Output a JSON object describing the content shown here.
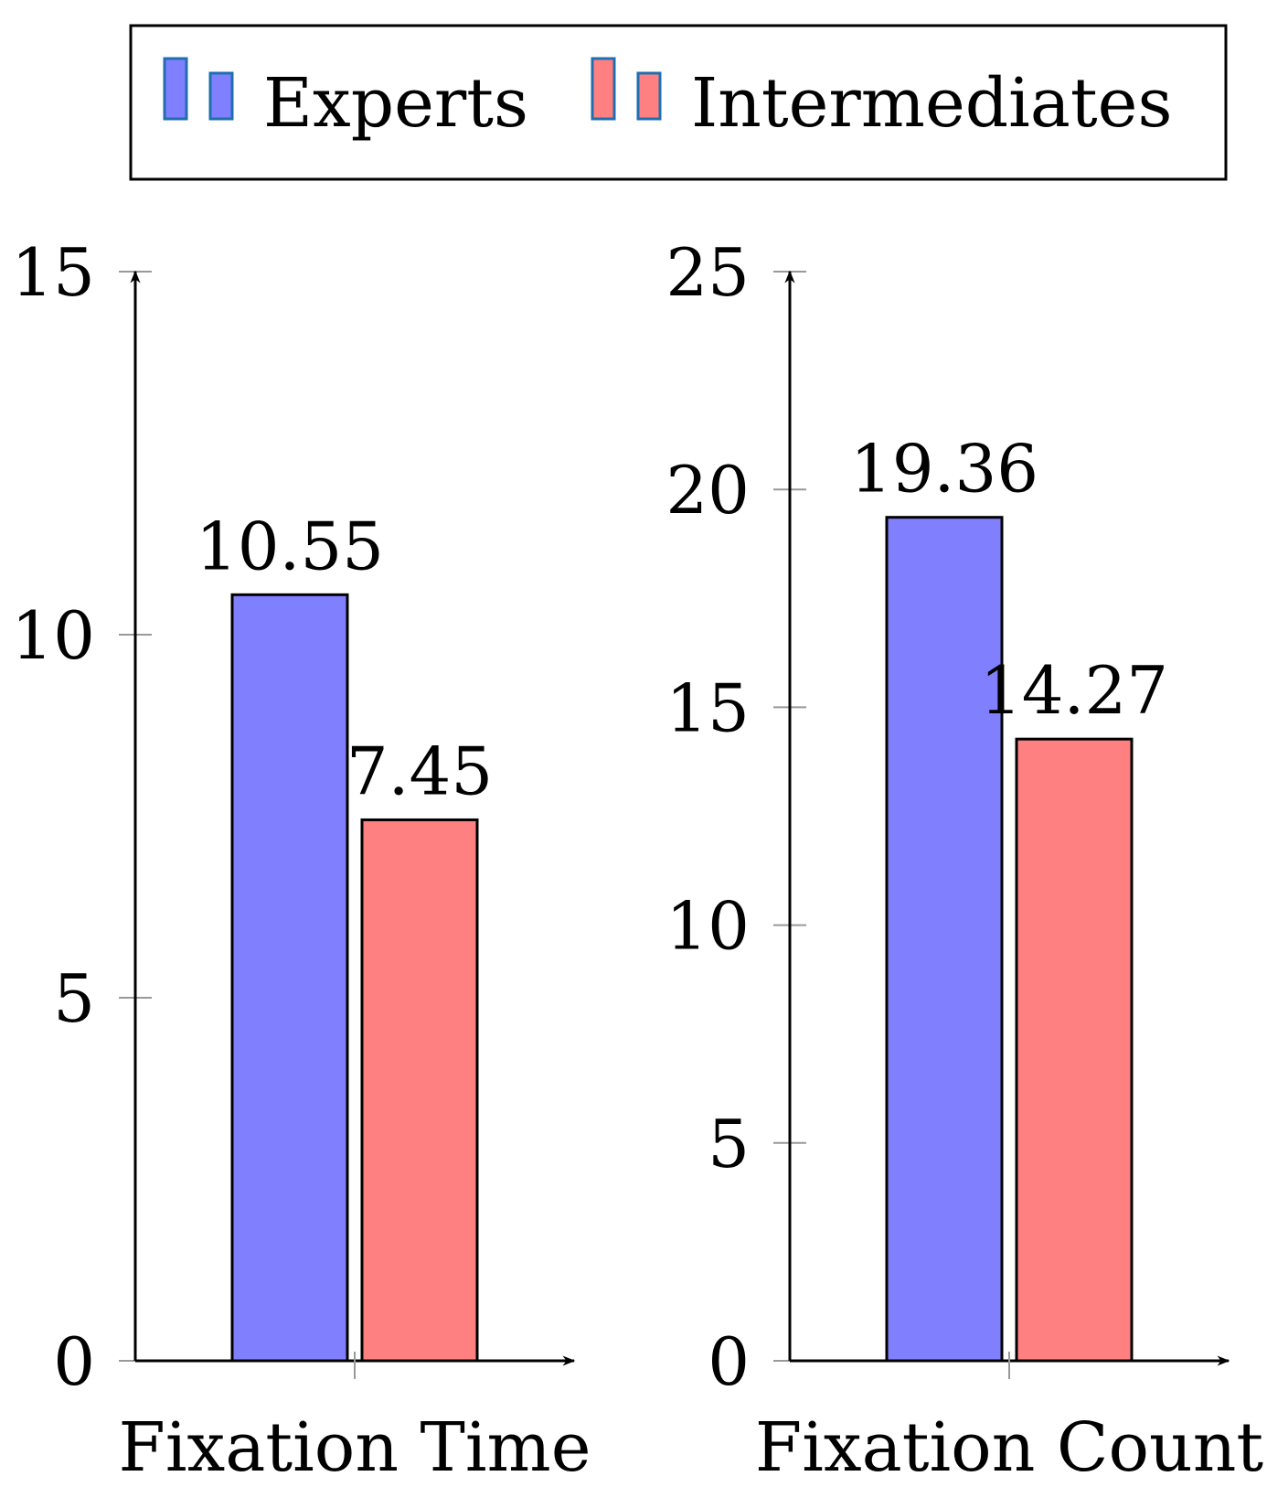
{
  "legend": {
    "items": [
      {
        "label": "Experts",
        "color": "#8080ff"
      },
      {
        "label": "Intermediates",
        "color": "#ff8080"
      }
    ],
    "swatch_border_color": "#1f6fb0",
    "placement": "top"
  },
  "colors": {
    "experts": "#8080ff",
    "intermediates": "#ff8080",
    "axis": "#000000",
    "tick": "#999999"
  },
  "chart_data": [
    {
      "type": "bar",
      "categories": [
        "Fixation Time"
      ],
      "series": [
        {
          "name": "Experts",
          "values": [
            10.55
          ]
        },
        {
          "name": "Intermediates",
          "values": [
            7.45
          ]
        }
      ],
      "data_labels": [
        "10.55",
        "7.45"
      ],
      "yticks": [
        "0",
        "5",
        "10",
        "15"
      ],
      "ylim": [
        0,
        15
      ],
      "grid": false
    },
    {
      "type": "bar",
      "categories": [
        "Fixation Count"
      ],
      "series": [
        {
          "name": "Experts",
          "values": [
            19.36
          ]
        },
        {
          "name": "Intermediates",
          "values": [
            14.27
          ]
        }
      ],
      "data_labels": [
        "19.36",
        "14.27"
      ],
      "yticks": [
        "0",
        "5",
        "10",
        "15",
        "20",
        "25"
      ],
      "ylim": [
        0,
        25
      ],
      "grid": false
    }
  ]
}
